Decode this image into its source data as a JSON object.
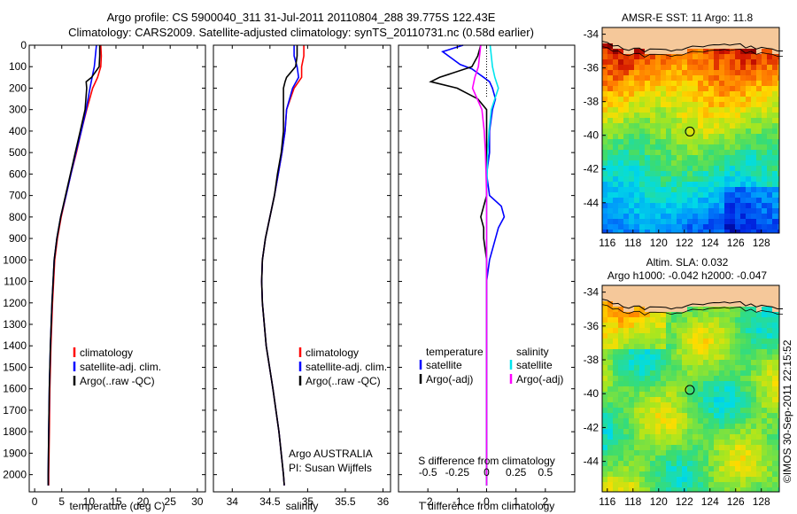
{
  "header": {
    "line1": "Argo profile: CS 5900040_311 31-Jul-2011 20110804_288 39.775S 122.43E",
    "line2": "Climatology: CARS2009. Satellite-adjusted climatology: synTS_20110731.nc (0.58d earlier)"
  },
  "colors": {
    "climatology": "#ff0000",
    "satellite": "#0000ff",
    "argo": "#000000",
    "satellite_salinity": "#00e5ee",
    "argo_salinity": "#ff00ff",
    "land": "#f5c89a"
  },
  "chart_data": [
    {
      "type": "line",
      "name": "temperature-panel",
      "xlabel": "temperature (deg C)",
      "ylabel": "",
      "xlim": [
        -1,
        31.5
      ],
      "ylim": [
        2080,
        0
      ],
      "xticks": [
        "0",
        "5",
        "10",
        "15",
        "20",
        "25",
        "30"
      ],
      "yticks": [
        "0",
        "100",
        "200",
        "300",
        "400",
        "500",
        "600",
        "700",
        "800",
        "900",
        "1000",
        "1100",
        "1200",
        "1300",
        "1400",
        "1500",
        "1600",
        "1700",
        "1800",
        "1900",
        "2000"
      ],
      "legend": [
        "climatology",
        "satellite-adj. clim.",
        "Argo(..raw -QC)"
      ],
      "series": [
        {
          "name": "climatology",
          "color": "#ff0000",
          "depth": [
            0,
            50,
            100,
            150,
            200,
            300,
            400,
            500,
            600,
            700,
            800,
            900,
            1000,
            1200,
            1400,
            1600,
            1800,
            2000,
            2050
          ],
          "values": [
            12.2,
            12.3,
            12.2,
            11.6,
            10.7,
            9.6,
            8.6,
            7.7,
            6.7,
            5.8,
            4.9,
            4.2,
            3.7,
            3.3,
            3.0,
            2.8,
            2.7,
            2.6,
            2.6
          ]
        },
        {
          "name": "satellite-adj. clim.",
          "color": "#0000ff",
          "depth": [
            0,
            50,
            100,
            150,
            200,
            300,
            400,
            500,
            600,
            700,
            800,
            900,
            1000,
            1200,
            1400,
            1600,
            1800,
            2000,
            2050
          ],
          "values": [
            11.4,
            11.2,
            11.0,
            10.6,
            10.2,
            9.5,
            8.6,
            7.6,
            6.7,
            5.8,
            4.8,
            4.1,
            3.6,
            3.2,
            2.9,
            2.7,
            2.6,
            2.5,
            2.5
          ]
        },
        {
          "name": "Argo(..raw -QC)",
          "color": "#000000",
          "depth": [
            0,
            50,
            100,
            150,
            170,
            200,
            300,
            400,
            500,
            600,
            700,
            800,
            900,
            1000,
            1200,
            1400,
            1600,
            1800,
            2000,
            2050
          ],
          "values": [
            12.0,
            12.0,
            11.9,
            10.5,
            9.5,
            9.6,
            9.3,
            8.4,
            7.5,
            6.6,
            5.7,
            4.8,
            4.1,
            3.6,
            3.2,
            2.9,
            2.7,
            2.6,
            2.5,
            2.5
          ]
        }
      ]
    },
    {
      "type": "line",
      "name": "salinity-panel",
      "xlabel": "salinity",
      "ylabel": "",
      "xlim": [
        33.75,
        36.1
      ],
      "ylim": [
        2080,
        0
      ],
      "xticks": [
        "34",
        "34.5",
        "35",
        "35.5",
        "36"
      ],
      "legend": [
        "climatology",
        "satellite-adj. clim.",
        "Argo(..raw -QC)"
      ],
      "annotation": [
        "Argo AUSTRALIA",
        "PI: Susan Wijffels"
      ],
      "series": [
        {
          "name": "climatology",
          "color": "#ff0000",
          "depth": [
            0,
            50,
            100,
            150,
            200,
            300,
            400,
            500,
            600,
            700,
            800,
            900,
            1000,
            1100,
            1200,
            1400,
            1600,
            1800,
            2000,
            2050
          ],
          "values": [
            34.95,
            34.95,
            34.92,
            34.92,
            34.82,
            34.72,
            34.7,
            34.66,
            34.61,
            34.56,
            34.5,
            34.44,
            34.4,
            34.39,
            34.4,
            34.45,
            34.54,
            34.62,
            34.68,
            34.69
          ]
        },
        {
          "name": "satellite-adj. clim.",
          "color": "#0000ff",
          "depth": [
            0,
            50,
            100,
            150,
            200,
            300,
            400,
            500,
            600,
            700,
            800,
            900,
            1000,
            1100,
            1200,
            1400,
            1600,
            1800,
            2000,
            2050
          ],
          "values": [
            34.82,
            34.82,
            34.86,
            34.88,
            34.8,
            34.72,
            34.7,
            34.66,
            34.61,
            34.56,
            34.5,
            34.44,
            34.4,
            34.39,
            34.4,
            34.45,
            34.54,
            34.62,
            34.68,
            34.69
          ]
        },
        {
          "name": "Argo(..raw -QC)",
          "color": "#000000",
          "depth": [
            0,
            50,
            100,
            150,
            170,
            200,
            300,
            400,
            500,
            600,
            700,
            800,
            900,
            1000,
            1100,
            1200,
            1400,
            1600,
            1800,
            2000,
            2050
          ],
          "values": [
            34.86,
            34.86,
            34.84,
            34.72,
            34.7,
            34.68,
            34.68,
            34.68,
            34.65,
            34.6,
            34.56,
            34.5,
            34.44,
            34.4,
            34.39,
            34.4,
            34.45,
            34.54,
            34.62,
            34.68,
            34.69
          ]
        }
      ]
    },
    {
      "type": "line",
      "name": "difference-panel",
      "xlabel": "T difference from climatology",
      "xlabel_top": "S difference from climatology",
      "ylabel": "",
      "xlim": [
        -3,
        3
      ],
      "ylim": [
        2080,
        0
      ],
      "xticks": [
        "-2",
        "-1",
        "0",
        "1",
        "2"
      ],
      "xticks_top": [
        "-0.5",
        "-0.25",
        "0",
        "0.25",
        "0.5"
      ],
      "legend_temperature": [
        "temperature",
        "satellite",
        "Argo(-adj)"
      ],
      "legend_salinity": [
        "salinity",
        "satellite",
        "Argo(-adj)"
      ],
      "series": [
        {
          "name": "T satellite",
          "color": "#0000ff",
          "depth": [
            0,
            30,
            60,
            90,
            110,
            130,
            150,
            170,
            200,
            250,
            300,
            400,
            500,
            600,
            700,
            750,
            800,
            850,
            900,
            1000,
            1100,
            1300,
            1500,
            2050
          ],
          "values": [
            -0.8,
            -1.5,
            -1.2,
            -0.9,
            -0.5,
            -0.3,
            -0.1,
            0.1,
            0.2,
            0.3,
            0.2,
            0.1,
            0.1,
            0.0,
            0.1,
            0.5,
            0.6,
            0.4,
            0.3,
            0.1,
            0.0,
            0.0,
            0.0,
            0.0
          ]
        },
        {
          "name": "T Argo(-adj)",
          "color": "#000000",
          "depth": [
            0,
            50,
            100,
            150,
            170,
            200,
            250,
            300,
            400,
            500,
            600,
            700,
            750,
            800,
            850,
            900,
            1000,
            1100,
            1300,
            1500,
            2050
          ],
          "values": [
            -0.2,
            -0.3,
            -0.5,
            -1.6,
            -1.9,
            -1.0,
            -0.3,
            0.0,
            0.0,
            0.0,
            0.0,
            0.0,
            -0.1,
            -0.2,
            -0.1,
            -0.1,
            0.0,
            0.0,
            0.0,
            0.0,
            0.0
          ]
        },
        {
          "name": "S satellite",
          "color": "#00e5ee",
          "depth": [
            0,
            50,
            100,
            150,
            200,
            300,
            400,
            500,
            700,
            1000,
            1500,
            2050
          ],
          "values": [
            0.03,
            0.04,
            0.05,
            0.07,
            0.1,
            0.04,
            0.02,
            0.01,
            0.0,
            0.0,
            0.0,
            0.0
          ]
        },
        {
          "name": "S Argo(-adj)",
          "color": "#ff00ff",
          "depth": [
            0,
            50,
            100,
            150,
            200,
            250,
            300,
            400,
            500,
            700,
            1000,
            1500,
            2050
          ],
          "values": [
            -0.05,
            -0.06,
            -0.07,
            -0.1,
            -0.12,
            -0.08,
            -0.04,
            -0.02,
            -0.01,
            0.0,
            0.0,
            0.0,
            0.0
          ]
        }
      ]
    },
    {
      "type": "heatmap",
      "name": "sst-map",
      "title": "AMSR-E SST: 11 Argo: 11.8",
      "xticks": [
        "116",
        "118",
        "120",
        "122",
        "124",
        "126",
        "128"
      ],
      "yticks": [
        "-34",
        "-36",
        "-38",
        "-40",
        "-42",
        "-44"
      ],
      "xlim": [
        115.6,
        129.4
      ],
      "ylim": [
        -45.8,
        -33.6
      ],
      "marker": {
        "lon": 122.43,
        "lat": -39.775
      }
    },
    {
      "type": "heatmap",
      "name": "sla-map",
      "title": "Altim. SLA: 0.032",
      "subtitle": "Argo h1000: -0.042 h2000: -0.047",
      "xticks": [
        "116",
        "118",
        "120",
        "122",
        "124",
        "126",
        "128"
      ],
      "yticks": [
        "-34",
        "-36",
        "-38",
        "-40",
        "-42",
        "-44"
      ],
      "xlim": [
        115.6,
        129.4
      ],
      "ylim": [
        -45.8,
        -33.6
      ],
      "marker": {
        "lon": 122.43,
        "lat": -39.775
      }
    }
  ],
  "credit": "©IMOS 30-Sep-2011 22:15:52"
}
